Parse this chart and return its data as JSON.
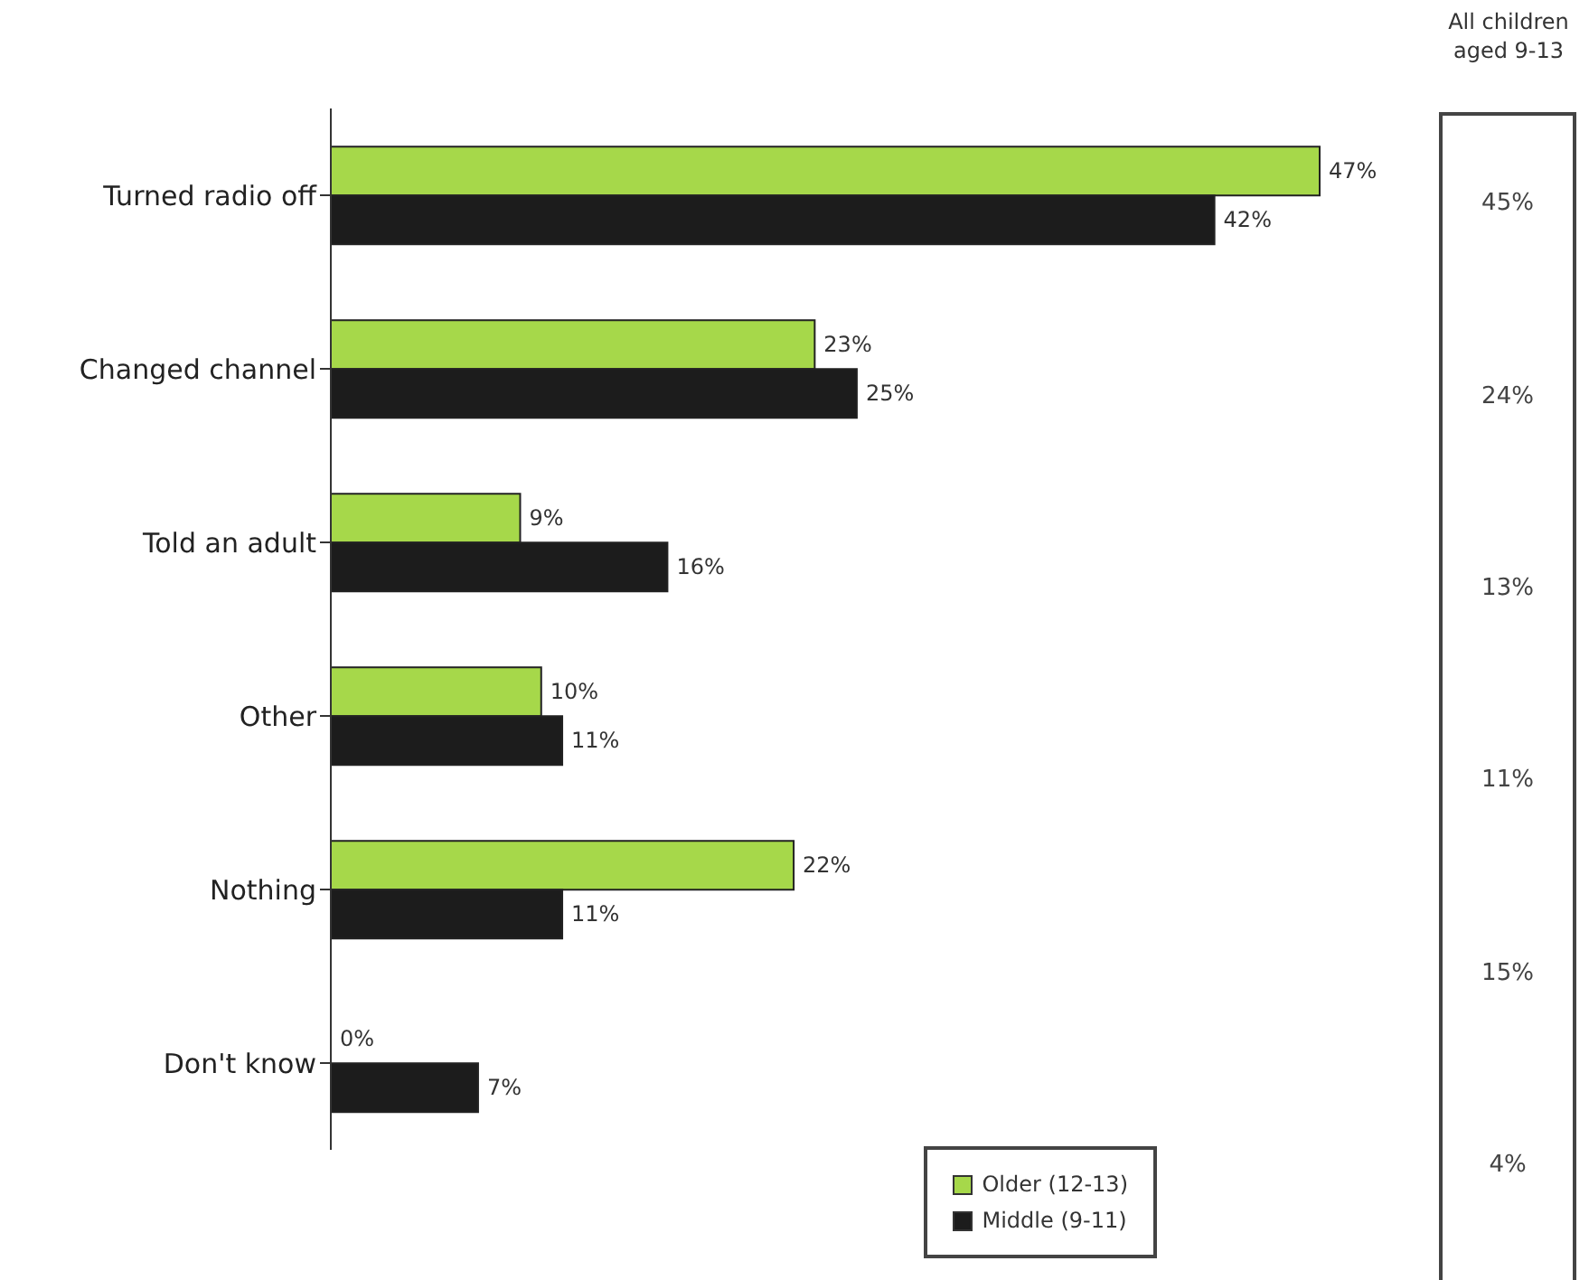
{
  "chart_data": [
    {
      "type": "bar",
      "orientation": "horizontal",
      "categories": [
        "Turned radio off",
        "Changed channel",
        "Told an adult",
        "Other",
        "Nothing",
        "Don't know"
      ],
      "series": [
        {
          "name": "Older (12-13)",
          "color": "#a6d84a",
          "values": [
            47,
            23,
            9,
            10,
            22,
            0
          ],
          "value_labels": [
            "47%",
            "23%",
            "9%",
            "10%",
            "22%",
            "0%"
          ]
        },
        {
          "name": "Middle (9-11)",
          "color": "#1c1c1c",
          "values": [
            42,
            25,
            16,
            11,
            11,
            7
          ],
          "value_labels": [
            "42%",
            "25%",
            "16%",
            "11%",
            "11%",
            "7%"
          ]
        }
      ],
      "legend": "bottom right"
    },
    {
      "type": "other",
      "title": "All children aged 9-13",
      "value_labels": [
        "45%",
        "24%",
        "13%",
        "11%",
        "15%",
        "4%"
      ]
    }
  ]
}
